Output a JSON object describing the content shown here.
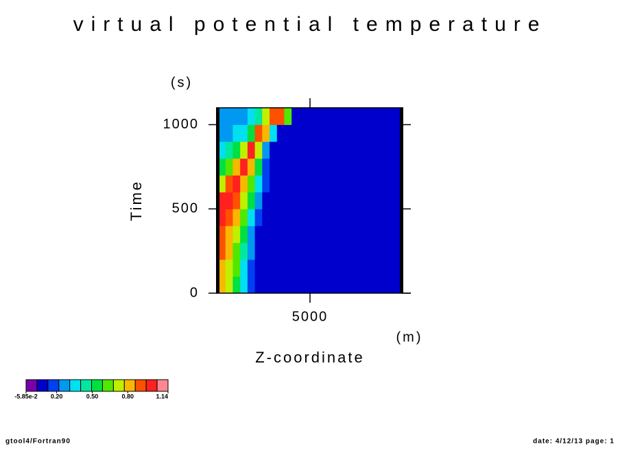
{
  "chart_data": {
    "type": "heatmap",
    "title": "virtual potential temperature",
    "x_label": "Z-coordinate",
    "x_unit": "(m)",
    "y_label": "Time",
    "y_unit": "(s)",
    "xlim": [
      0,
      10000
    ],
    "xticks": [
      5000
    ],
    "ylim": [
      0,
      1100
    ],
    "yticks": [
      0,
      500,
      1000
    ],
    "x_edges": [
      0,
      400,
      800,
      1200,
      1600,
      2000,
      2400,
      2800,
      3200,
      3600,
      4000,
      4400,
      4800,
      10000
    ],
    "y_edges": [
      0,
      100,
      200,
      300,
      400,
      500,
      600,
      700,
      800,
      900,
      1000,
      1100
    ],
    "z": [
      [
        0.8,
        0.7,
        0.55,
        0.35,
        0.15,
        0.05,
        0.05,
        0.05,
        0.05,
        0.05,
        0.05,
        0.05,
        0.05
      ],
      [
        0.85,
        0.75,
        0.6,
        0.4,
        0.2,
        0.05,
        0.05,
        0.05,
        0.05,
        0.05,
        0.05,
        0.05,
        0.05
      ],
      [
        0.9,
        0.8,
        0.65,
        0.45,
        0.25,
        0.08,
        0.05,
        0.05,
        0.05,
        0.05,
        0.05,
        0.05,
        0.05
      ],
      [
        0.95,
        0.85,
        0.7,
        0.5,
        0.3,
        0.1,
        0.05,
        0.05,
        0.05,
        0.05,
        0.05,
        0.05,
        0.05
      ],
      [
        1.0,
        0.95,
        0.8,
        0.6,
        0.4,
        0.2,
        0.05,
        0.05,
        0.05,
        0.05,
        0.05,
        0.05,
        0.05
      ],
      [
        1.0,
        1.0,
        0.9,
        0.7,
        0.5,
        0.3,
        0.1,
        0.05,
        0.05,
        0.05,
        0.05,
        0.05,
        0.05
      ],
      [
        0.75,
        0.95,
        1.0,
        0.85,
        0.6,
        0.4,
        0.15,
        0.05,
        0.05,
        0.05,
        0.05,
        0.05,
        0.05
      ],
      [
        0.55,
        0.65,
        0.85,
        1.0,
        0.8,
        0.5,
        0.2,
        0.05,
        0.05,
        0.05,
        0.05,
        0.05,
        0.05
      ],
      [
        0.4,
        0.45,
        0.5,
        0.7,
        1.0,
        0.75,
        0.3,
        0.1,
        0.05,
        0.05,
        0.05,
        0.05,
        0.05
      ],
      [
        0.3,
        0.3,
        0.35,
        0.4,
        0.55,
        0.9,
        0.8,
        0.4,
        0.1,
        0.05,
        0.05,
        0.05,
        0.05
      ],
      [
        0.25,
        0.25,
        0.3,
        0.3,
        0.35,
        0.45,
        0.7,
        0.95,
        0.9,
        0.6,
        0.1,
        0.05,
        0.05
      ]
    ],
    "levels": [
      -0.0585,
      0.034,
      0.126,
      0.218,
      0.31,
      0.402,
      0.495,
      0.587,
      0.679,
      0.771,
      0.863,
      0.955,
      1.048,
      1.14
    ],
    "colors": [
      "#7a00aa",
      "#0000cc",
      "#0040f0",
      "#0098f0",
      "#00e0f0",
      "#00e8a0",
      "#00e040",
      "#50e800",
      "#c0f000",
      "#f8b800",
      "#ff5000",
      "#ff2020",
      "#ff8890"
    ],
    "colorbar_ticks": [
      {
        "value": -0.0585,
        "label": "-5.85e-2"
      },
      {
        "value": 0.2,
        "label": "0.20"
      },
      {
        "value": 0.5,
        "label": "0.50"
      },
      {
        "value": 0.8,
        "label": "0.80"
      },
      1.14
    ],
    "footer_left": "gtool4/Fortran90",
    "footer_right": "date: 4/12/13 page: 1"
  }
}
